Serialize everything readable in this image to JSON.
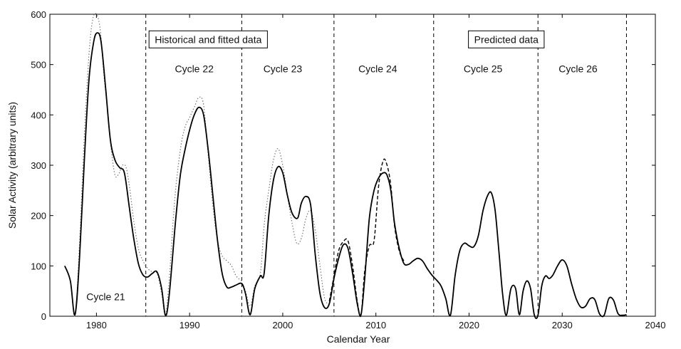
{
  "chart_data": {
    "type": "line",
    "title": "",
    "xlabel": "Calendar Year",
    "ylabel": "Solar Activity (arbitrary units)",
    "xlim": [
      1975,
      2040
    ],
    "ylim": [
      0,
      600
    ],
    "xticks": [
      1980,
      1990,
      2000,
      2010,
      2020,
      2030,
      2040
    ],
    "yticks": [
      0,
      100,
      200,
      300,
      400,
      500,
      600
    ],
    "grid": false,
    "legend": "none",
    "cycle_boundaries": [
      1985.3,
      1995.6,
      2005.5,
      2016.2,
      2027.4,
      2036.9
    ],
    "cycle_labels": [
      {
        "text": "Cycle 21",
        "x": 1981,
        "y": 32
      },
      {
        "text": "Cycle 22",
        "x": 1990.5,
        "y": 485
      },
      {
        "text": "Cycle 23",
        "x": 2000,
        "y": 485
      },
      {
        "text": "Cycle 24",
        "x": 2010.2,
        "y": 485
      },
      {
        "text": "Cycle 25",
        "x": 2021.5,
        "y": 485
      },
      {
        "text": "Cycle 26",
        "x": 2031.7,
        "y": 485
      }
    ],
    "annotations": [
      {
        "text": "Historical and fitted data",
        "x": 1992,
        "y": 550
      },
      {
        "text": "Predicted data",
        "x": 2024,
        "y": 550
      }
    ],
    "series": [
      {
        "style": "solid",
        "color": "#000000",
        "x": [
          1976.6,
          1977.2,
          1977.7,
          1978.2,
          1978.7,
          1979.2,
          1979.7,
          1980.1,
          1980.5,
          1981.0,
          1981.5,
          1982.0,
          1982.5,
          1983.0,
          1983.5,
          1984.0,
          1984.5,
          1985.0,
          1985.5,
          1986.0,
          1986.5,
          1987.0,
          1987.4,
          1987.8,
          1988.5,
          1989.0,
          1989.5,
          1990.0,
          1990.5,
          1991.0,
          1991.5,
          1992.0,
          1992.5,
          1993.0,
          1993.5,
          1994.0,
          1994.5,
          1995.0,
          1995.6,
          1996.0,
          1996.5,
          1997.0,
          1997.6,
          1998.0,
          1998.5,
          1999.0,
          1999.5,
          2000.0,
          2000.5,
          2001.0,
          2001.6,
          2002.0,
          2002.5,
          2003.0,
          2003.5,
          2004.0,
          2004.5,
          2005.0,
          2005.5,
          2006.0,
          2006.5,
          2007.0,
          2007.5,
          2008.0,
          2008.4,
          2008.8,
          2009.3,
          2009.8,
          2010.3,
          2010.8,
          2011.2,
          2011.6,
          2012.0,
          2012.5,
          2013.0,
          2013.5,
          2014.0,
          2014.5,
          2015.0,
          2015.5,
          2016.0,
          2016.5,
          2017.0,
          2017.5,
          2018.0,
          2018.5,
          2019.0,
          2019.5,
          2020.0,
          2020.5,
          2021.0,
          2021.5,
          2022.0,
          2022.4,
          2022.8,
          2023.2,
          2023.6,
          2024.0,
          2024.5,
          2025.0,
          2025.4,
          2025.8,
          2026.2,
          2026.6,
          2027.0,
          2027.4,
          2027.8,
          2028.2,
          2028.6,
          2029.0,
          2029.5,
          2030.0,
          2030.5,
          2031.0,
          2031.5,
          2032.0,
          2032.5,
          2033.0,
          2033.5,
          2034.0,
          2034.5,
          2035.0,
          2035.5,
          2036.0,
          2036.5,
          2036.9
        ],
        "y": [
          100,
          70,
          3,
          120,
          310,
          470,
          545,
          563,
          545,
          450,
          350,
          310,
          295,
          285,
          220,
          155,
          105,
          82,
          78,
          85,
          88,
          55,
          2,
          40,
          190,
          280,
          330,
          370,
          400,
          415,
          400,
          330,
          240,
          150,
          85,
          58,
          58,
          62,
          65,
          45,
          3,
          55,
          80,
          85,
          200,
          270,
          297,
          285,
          240,
          205,
          195,
          225,
          238,
          220,
          120,
          45,
          17,
          25,
          75,
          115,
          142,
          135,
          85,
          25,
          3,
          75,
          195,
          250,
          275,
          285,
          280,
          250,
          185,
          135,
          105,
          103,
          110,
          115,
          110,
          95,
          82,
          72,
          60,
          35,
          2,
          80,
          130,
          145,
          140,
          138,
          160,
          210,
          240,
          245,
          210,
          130,
          45,
          2,
          55,
          55,
          3,
          50,
          70,
          55,
          3,
          2,
          60,
          80,
          75,
          82,
          100,
          112,
          100,
          65,
          35,
          18,
          20,
          35,
          33,
          5,
          2,
          35,
          32,
          5,
          2,
          3
        ]
      },
      {
        "style": "dotted",
        "color": "#777777",
        "x": [
          1976.6,
          1977.2,
          1977.7,
          1978.2,
          1978.7,
          1979.2,
          1979.6,
          1980.0,
          1980.4,
          1980.8,
          1981.2,
          1981.6,
          1982.0,
          1982.4,
          1982.8,
          1983.2,
          1983.6,
          1984.0,
          1984.5,
          1985.0,
          1985.5,
          1986.0,
          1986.5,
          1987.0,
          1987.4,
          1987.8,
          1988.4,
          1989.0,
          1989.5,
          1990.0,
          1990.5,
          1991.0,
          1991.5,
          1992.0,
          1992.5,
          1993.0,
          1993.5,
          1994.0,
          1994.5,
          1995.0,
          1995.6
        ],
        "y": [
          100,
          70,
          2,
          150,
          360,
          520,
          590,
          600,
          570,
          480,
          410,
          330,
          280,
          283,
          300,
          295,
          250,
          190,
          135,
          110,
          95,
          88,
          85,
          45,
          2,
          70,
          230,
          330,
          375,
          395,
          415,
          435,
          420,
          320,
          220,
          150,
          120,
          110,
          100,
          80,
          70
        ]
      },
      {
        "style": "dotted",
        "color": "#777777",
        "x": [
          1995.6,
          1996.0,
          1996.5,
          1997.0,
          1997.6,
          1998.0,
          1998.5,
          1999.0,
          1999.5,
          2000.0,
          2000.5,
          2001.0,
          2001.5,
          2002.0,
          2002.5,
          2003.0,
          2003.5,
          2004.0,
          2004.5,
          2005.0
        ],
        "y": [
          65,
          50,
          20,
          60,
          85,
          180,
          250,
          310,
          333,
          300,
          240,
          185,
          145,
          155,
          195,
          210,
          170,
          100,
          35,
          25
        ]
      },
      {
        "style": "dashed",
        "color": "#000000",
        "x": [
          2005.0,
          2005.5,
          2006.0,
          2006.5,
          2007.0,
          2007.5,
          2008.0,
          2008.4,
          2008.8,
          2009.3,
          2009.8,
          2010.3,
          2010.8,
          2011.2,
          2011.6,
          2012.0,
          2012.5,
          2013.0
        ],
        "y": [
          30,
          80,
          130,
          148,
          150,
          100,
          30,
          2,
          90,
          140,
          150,
          260,
          310,
          300,
          260,
          180,
          130,
          110
        ]
      }
    ]
  }
}
